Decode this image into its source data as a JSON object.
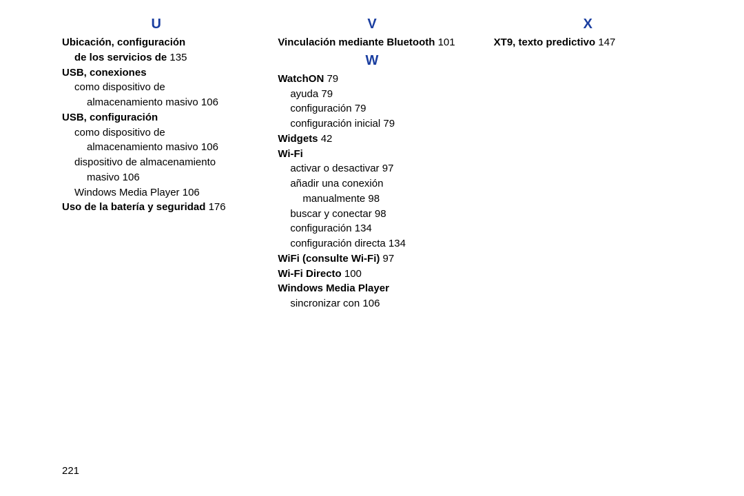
{
  "accent_color": "#1a3ea0",
  "page_number": "221",
  "col1": {
    "letter": "U",
    "items": [
      {
        "cls": "bold",
        "text": "Ubicación, configuración"
      },
      {
        "cls": "bold ind1",
        "label": "de los servicios de",
        "page": "135"
      },
      {
        "cls": "bold",
        "text": "USB, conexiones"
      },
      {
        "cls": "ind1",
        "text": "como dispositivo de"
      },
      {
        "cls": "ind2",
        "label": "almacenamiento masivo",
        "page": "106"
      },
      {
        "cls": "bold",
        "text": "USB, configuración"
      },
      {
        "cls": "ind1",
        "text": "como dispositivo de"
      },
      {
        "cls": "ind2",
        "label": "almacenamiento masivo",
        "page": "106"
      },
      {
        "cls": "ind1",
        "text": "dispositivo de almacenamiento"
      },
      {
        "cls": "ind2",
        "label": "masivo",
        "page": "106"
      },
      {
        "cls": "ind1",
        "label": "Windows Media Player",
        "page": "106"
      },
      {
        "cls": "bold",
        "label": "Uso de la batería y seguridad",
        "page": "176"
      }
    ]
  },
  "col2": {
    "letterV": "V",
    "v_items": [
      {
        "cls": "bold",
        "label": "Vinculación mediante Bluetooth",
        "page": "101"
      }
    ],
    "letterW": "W",
    "w_items": [
      {
        "cls": "bold",
        "label": "WatchON",
        "page": "79"
      },
      {
        "cls": "ind1",
        "label": "ayuda",
        "page": "79"
      },
      {
        "cls": "ind1",
        "label": "configuración",
        "page": "79"
      },
      {
        "cls": "ind1",
        "label": "configuración inicial",
        "page": "79"
      },
      {
        "cls": "bold",
        "label": "Widgets",
        "page": "42"
      },
      {
        "cls": "bold",
        "text": "Wi-Fi"
      },
      {
        "cls": "ind1",
        "label": "activar o desactivar",
        "page": "97"
      },
      {
        "cls": "ind1",
        "text": "añadir una conexión"
      },
      {
        "cls": "ind2",
        "label": "manualmente",
        "page": "98"
      },
      {
        "cls": "ind1",
        "label": "buscar y conectar",
        "page": "98"
      },
      {
        "cls": "ind1",
        "label": "configuración",
        "page": "134"
      },
      {
        "cls": "ind1",
        "label": "configuración directa",
        "page": "134"
      },
      {
        "cls": "bold",
        "label": "WiFi (consulte Wi-Fi)",
        "page": "97"
      },
      {
        "cls": "bold",
        "label": "Wi-Fi Directo",
        "page": "100"
      },
      {
        "cls": "bold",
        "text": "Windows Media Player"
      },
      {
        "cls": "ind1",
        "label": "sincronizar con",
        "page": "106"
      }
    ]
  },
  "col3": {
    "letter": "X",
    "items": [
      {
        "cls": "bold",
        "label": "XT9, texto predictivo",
        "page": "147"
      }
    ]
  }
}
